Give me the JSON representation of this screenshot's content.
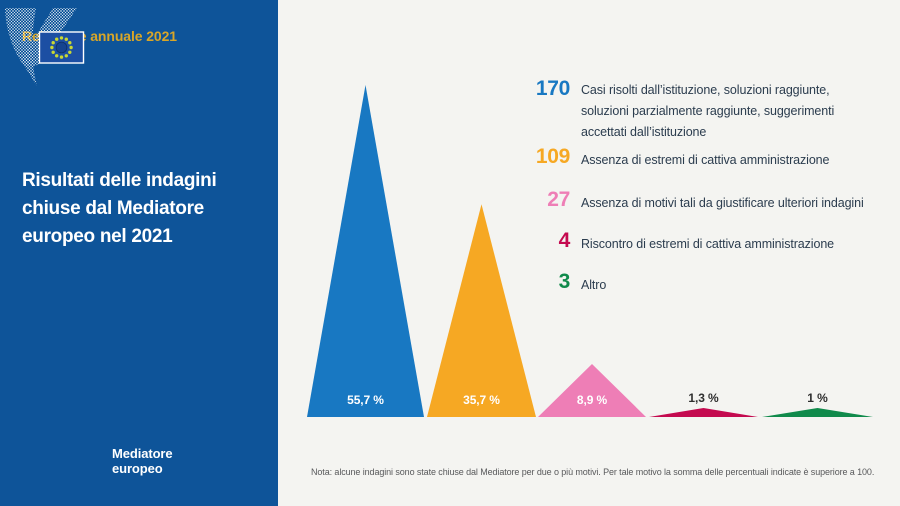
{
  "theme": {
    "sidebar_bg": "#0e5499",
    "main_bg": "#f4f4f1",
    "kicker_color": "#d9a627",
    "title_color": "#ffffff",
    "legend_text_color": "#2b3c4e",
    "note_color": "#58595b",
    "percent_inside_color": "#ffffff",
    "percent_outside_color": "#2f2f2f",
    "flag_bg": "#1c4fa3",
    "flag_star_color": "#c9d832"
  },
  "sidebar": {
    "kicker": "Relazione annuale 2021",
    "title": "Risultati delle indagini chiuse dal Mediatore europeo nel 2021",
    "title_lines": [
      "Risultati delle indagini",
      "chiuse dal Mediatore",
      "europeo nel 2021"
    ],
    "logo": {
      "name_lines": [
        "Mediatore",
        "europeo"
      ]
    }
  },
  "chart_data": {
    "type": "bar",
    "mark": "triangle-peaks",
    "title": "Risultati delle indagini chiuse dal Mediatore europeo nel 2021",
    "legend_position": "right",
    "grid": false,
    "items": [
      {
        "count": 170,
        "pct": 55.7,
        "pct_label": "55,7 %",
        "label": "Casi risolti dall’istituzione, soluzioni raggiunte, soluzioni parzialmente raggiunte, suggerimenti accettati dall’istituzione",
        "label_lines": [
          "Casi risolti dall’istituzione, soluzioni raggiunte,",
          "soluzioni parzialmente raggiunte, suggerimenti",
          "accettati dall’istituzione"
        ],
        "color": "#1878c2",
        "pct_label_inside": true
      },
      {
        "count": 109,
        "pct": 35.7,
        "pct_label": "35,7 %",
        "label": "Assenza di estremi di cattiva amministrazione",
        "label_lines": [
          "Assenza di estremi di cattiva amministrazione"
        ],
        "color": "#f6a823",
        "pct_label_inside": true
      },
      {
        "count": 27,
        "pct": 8.9,
        "pct_label": "8,9 %",
        "label": "Assenza di motivi tali da giustificare ulteriori indagini",
        "label_lines": [
          "Assenza di motivi tali da giustificare ulteriori indagini"
        ],
        "color": "#ee7eb6",
        "pct_label_inside": true
      },
      {
        "count": 4,
        "pct": 1.3,
        "pct_label": "1,3 %",
        "label": "Riscontro di estremi di cattiva amministrazione",
        "label_lines": [
          "Riscontro di estremi di cattiva amministrazione"
        ],
        "color": "#c40a4f",
        "pct_label_inside": false
      },
      {
        "count": 3,
        "pct": 1.0,
        "pct_label": "1 %",
        "label": "Altro",
        "label_lines": [
          "Altro"
        ],
        "color": "#108a4b",
        "pct_label_inside": false
      }
    ]
  },
  "note": "Nota: alcune indagini sono state chiuse dal Mediatore per due o più motivi. Per tale motivo la somma delle percentuali indicate è superiore a 100."
}
